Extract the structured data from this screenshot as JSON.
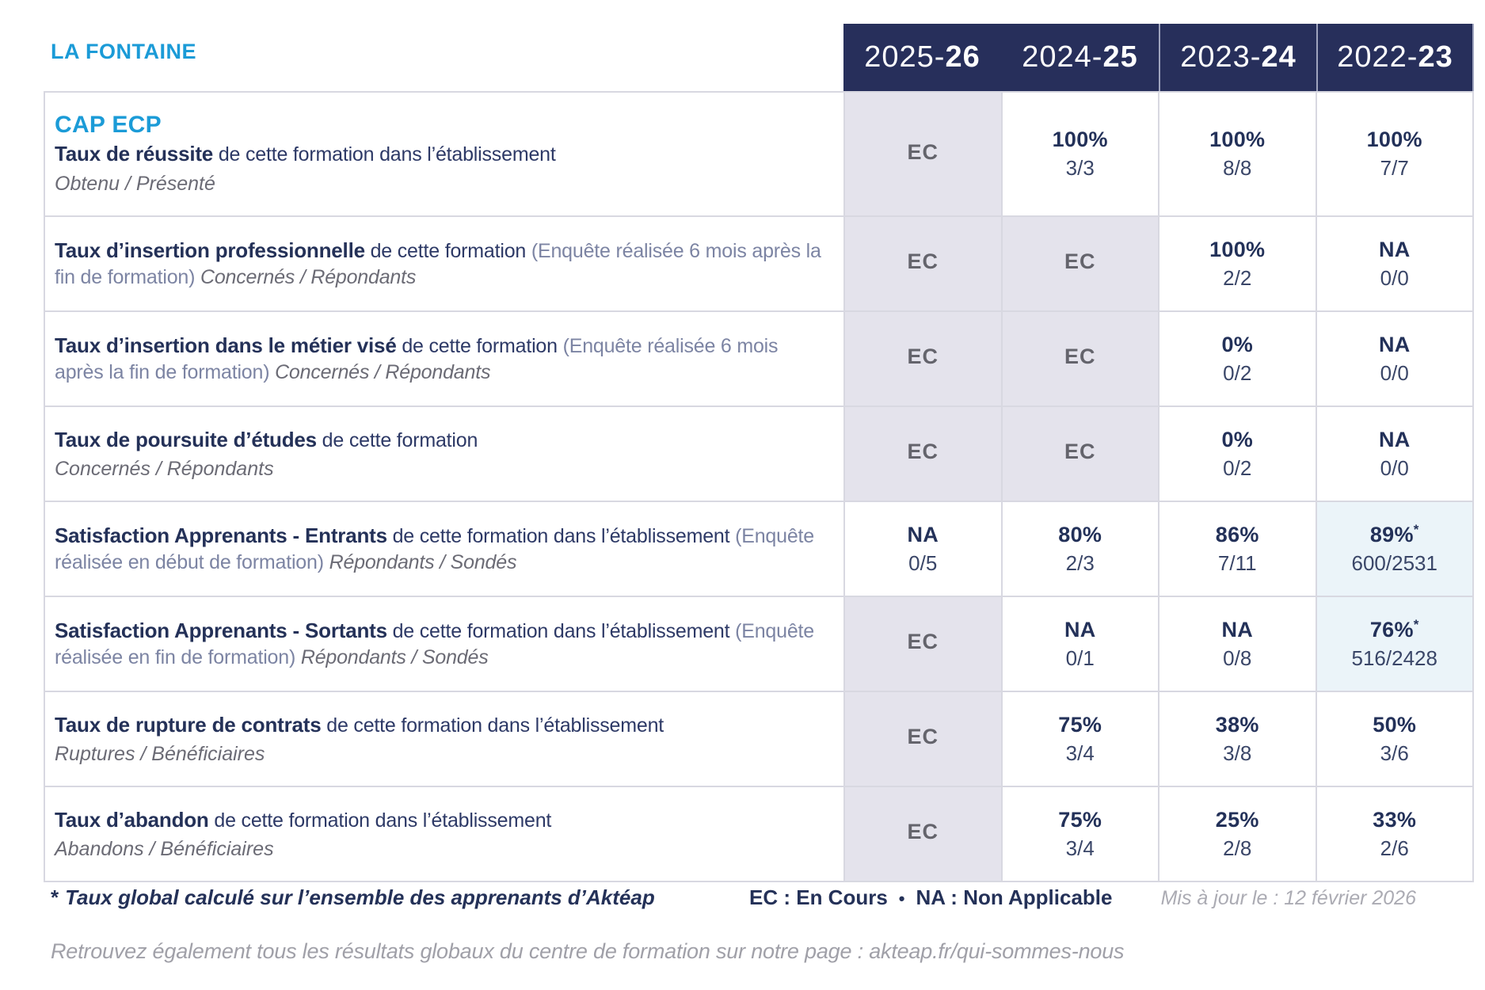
{
  "page_title": "LA FONTAINE",
  "program_title": "CAP ECP",
  "colors": {
    "navy_header": "#272F5B",
    "navy_text": "#243158",
    "cyan_accent": "#1B9BD7",
    "ec_cell_bg": "#E4E3EC",
    "highlight_cell_bg": "#EBF4F9",
    "border": "#D8D8E1"
  },
  "year_columns": [
    {
      "prefix": "2025-",
      "suffix": "26"
    },
    {
      "prefix": "2024-",
      "suffix": "25"
    },
    {
      "prefix": "2023-",
      "suffix": "24"
    },
    {
      "prefix": "2022-",
      "suffix": "23"
    }
  ],
  "rows": [
    {
      "title": "Taux de réussite",
      "desc": " de cette formation dans l’établissement",
      "ratio_label": "Obtenu / Présenté",
      "cells": [
        {
          "main": "EC",
          "style": "ec"
        },
        {
          "main": "100%",
          "sub": "3/3",
          "style": "val"
        },
        {
          "main": "100%",
          "sub": "8/8",
          "style": "val"
        },
        {
          "main": "100%",
          "sub": "7/7",
          "style": "val"
        }
      ]
    },
    {
      "title": "Taux d’insertion professionnelle",
      "desc": " de cette formation ",
      "note": "(Enquête réalisée 6 mois après la fin de formation) ",
      "ratio_label": "Concernés / Répondants",
      "cells": [
        {
          "main": "EC",
          "style": "ec"
        },
        {
          "main": "EC",
          "style": "ec"
        },
        {
          "main": "100%",
          "sub": "2/2",
          "style": "val"
        },
        {
          "main": "NA",
          "sub": "0/0",
          "style": "val"
        }
      ]
    },
    {
      "title": "Taux d’insertion dans le métier visé",
      "desc": " de cette formation ",
      "note": "(Enquête réalisée 6 mois après la fin de formation) ",
      "ratio_label": "Concernés / Répondants",
      "cells": [
        {
          "main": "EC",
          "style": "ec"
        },
        {
          "main": "EC",
          "style": "ec"
        },
        {
          "main": "0%",
          "sub": "0/2",
          "style": "val"
        },
        {
          "main": "NA",
          "sub": "0/0",
          "style": "val"
        }
      ]
    },
    {
      "title": "Taux de poursuite d’études",
      "desc": " de cette formation",
      "ratio_label": "Concernés / Répondants",
      "cells": [
        {
          "main": "EC",
          "style": "ec"
        },
        {
          "main": "EC",
          "style": "ec"
        },
        {
          "main": "0%",
          "sub": "0/2",
          "style": "val"
        },
        {
          "main": "NA",
          "sub": "0/0",
          "style": "val"
        }
      ]
    },
    {
      "title": "Satisfaction Apprenants - Entrants",
      "desc": " de cette formation dans l’établissement ",
      "note": "(Enquête réalisée en début de formation) ",
      "ratio_label": "Répondants / Sondés",
      "cells": [
        {
          "main": "NA",
          "sub": "0/5",
          "style": "val"
        },
        {
          "main": "80%",
          "sub": "2/3",
          "style": "val"
        },
        {
          "main": "86%",
          "sub": "7/11",
          "style": "val"
        },
        {
          "main": "89%",
          "star": "*",
          "sub": "600/2531",
          "style": "hl"
        }
      ]
    },
    {
      "title": "Satisfaction Apprenants - Sortants",
      "desc": " de cette formation dans l’établissement ",
      "note": "(Enquête réalisée en fin de formation) ",
      "ratio_label": "Répondants / Sondés",
      "cells": [
        {
          "main": "EC",
          "style": "ec"
        },
        {
          "main": "NA",
          "sub": "0/1",
          "style": "val"
        },
        {
          "main": "NA",
          "sub": "0/8",
          "style": "val"
        },
        {
          "main": "76%",
          "star": "*",
          "sub": "516/2428",
          "style": "hl"
        }
      ]
    },
    {
      "title": "Taux de rupture de contrats",
      "desc": " de cette formation dans l’établissement",
      "ratio_label": "Ruptures / Bénéficiaires",
      "cells": [
        {
          "main": "EC",
          "style": "ec"
        },
        {
          "main": "75%",
          "sub": "3/4",
          "style": "val"
        },
        {
          "main": "38%",
          "sub": "3/8",
          "style": "val"
        },
        {
          "main": "50%",
          "sub": "3/6",
          "style": "val"
        }
      ]
    },
    {
      "title": "Taux d’abandon",
      "desc": " de cette formation dans l’établissement",
      "ratio_label": "Abandons / Bénéficiaires",
      "cells": [
        {
          "main": "EC",
          "style": "ec"
        },
        {
          "main": "75%",
          "sub": "3/4",
          "style": "val"
        },
        {
          "main": "25%",
          "sub": "2/8",
          "style": "val"
        },
        {
          "main": "33%",
          "sub": "2/6",
          "style": "val"
        }
      ]
    }
  ],
  "footer": {
    "star": "*",
    "note": "Taux global calculé sur l’ensemble des apprenants d’Aktéap",
    "legend_ec": "EC : En Cours",
    "legend_sep": "•",
    "legend_na": "NA : Non Applicable",
    "updated": "Mis à jour le : 12 février 2026",
    "bottom_line": "Retrouvez également tous les résultats globaux du centre de formation sur notre page : akteap.fr/qui-sommes-nous"
  }
}
